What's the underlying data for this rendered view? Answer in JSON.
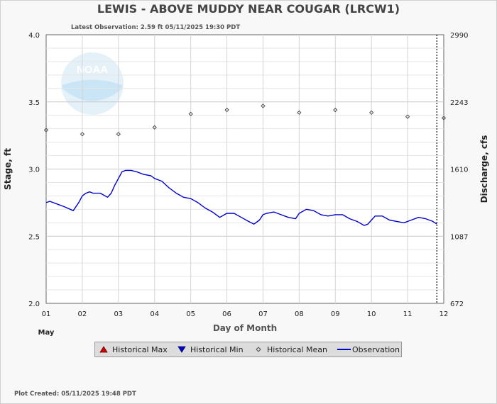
{
  "header": {
    "title": "LEWIS - ABOVE MUDDY NEAR COUGAR  (LRCW1)",
    "latest_observation": "Latest Observation: 2.59 ft 05/11/2025 19:30 PDT",
    "plot_created": "Plot Created: 05/11/2025 19:48 PDT"
  },
  "logo": {
    "text": "NOAA"
  },
  "legend": {
    "items": [
      {
        "label": "Historical Max",
        "symbol": "triangle-up",
        "color": "#cc0000"
      },
      {
        "label": "Historical Min",
        "symbol": "triangle-down",
        "color": "#0000cc"
      },
      {
        "label": "Historical Mean",
        "symbol": "diamond",
        "color": "#444444"
      },
      {
        "label": "Observation",
        "symbol": "line",
        "color": "#0000cc"
      }
    ]
  },
  "chart_data": {
    "type": "line",
    "xlabel": "Day of Month",
    "xsublabel": "May",
    "ylabel": "Stage, ft",
    "y2label": "Discharge, cfs",
    "xlim": [
      1,
      12
    ],
    "ylim": [
      2.0,
      4.0
    ],
    "x_ticks": [
      1,
      2,
      3,
      4,
      5,
      6,
      7,
      8,
      9,
      10,
      11,
      12
    ],
    "x_tick_labels": [
      "01",
      "02",
      "03",
      "04",
      "05",
      "06",
      "07",
      "08",
      "09",
      "10",
      "11",
      "12"
    ],
    "y_ticks": [
      2.0,
      2.5,
      3.0,
      3.5,
      4.0
    ],
    "y_tick_labels": [
      "2.0",
      "2.5",
      "3.0",
      "3.5",
      "4.0"
    ],
    "y2_ticks": [
      {
        "stage": 2.0,
        "label": "672"
      },
      {
        "stage": 2.5,
        "label": "1087"
      },
      {
        "stage": 3.0,
        "label": "1610"
      },
      {
        "stage": 3.5,
        "label": "2243"
      },
      {
        "stage": 4.0,
        "label": "2990"
      }
    ],
    "grid": true,
    "current_time_marker": 11.81,
    "series": [
      {
        "name": "Historical Mean",
        "kind": "points",
        "x": [
          1,
          2,
          3,
          4,
          5,
          6,
          7,
          8,
          9,
          10,
          11,
          12
        ],
        "values": [
          3.29,
          3.26,
          3.26,
          3.31,
          3.41,
          3.44,
          3.47,
          3.42,
          3.44,
          3.42,
          3.39,
          3.38
        ]
      },
      {
        "name": "Observation",
        "kind": "line",
        "x": [
          1.0,
          1.1,
          1.3,
          1.5,
          1.75,
          1.9,
          2.0,
          2.1,
          2.2,
          2.3,
          2.5,
          2.7,
          2.8,
          2.9,
          3.0,
          3.1,
          3.2,
          3.35,
          3.5,
          3.7,
          3.9,
          4.0,
          4.2,
          4.4,
          4.6,
          4.8,
          5.0,
          5.2,
          5.4,
          5.6,
          5.8,
          6.0,
          6.2,
          6.4,
          6.6,
          6.75,
          6.9,
          7.0,
          7.1,
          7.3,
          7.5,
          7.7,
          7.9,
          8.0,
          8.2,
          8.4,
          8.6,
          8.8,
          9.0,
          9.2,
          9.4,
          9.6,
          9.8,
          9.9,
          10.0,
          10.1,
          10.3,
          10.5,
          10.7,
          10.9,
          11.1,
          11.3,
          11.5,
          11.7,
          11.81
        ],
        "values": [
          2.75,
          2.76,
          2.74,
          2.72,
          2.69,
          2.75,
          2.8,
          2.82,
          2.83,
          2.82,
          2.82,
          2.79,
          2.82,
          2.88,
          2.93,
          2.98,
          2.99,
          2.99,
          2.98,
          2.96,
          2.95,
          2.93,
          2.91,
          2.86,
          2.82,
          2.79,
          2.78,
          2.75,
          2.71,
          2.68,
          2.64,
          2.67,
          2.67,
          2.64,
          2.61,
          2.59,
          2.62,
          2.66,
          2.67,
          2.68,
          2.66,
          2.64,
          2.63,
          2.67,
          2.7,
          2.69,
          2.66,
          2.65,
          2.66,
          2.66,
          2.63,
          2.61,
          2.58,
          2.59,
          2.62,
          2.65,
          2.65,
          2.62,
          2.61,
          2.6,
          2.62,
          2.64,
          2.63,
          2.61,
          2.59
        ]
      }
    ]
  }
}
